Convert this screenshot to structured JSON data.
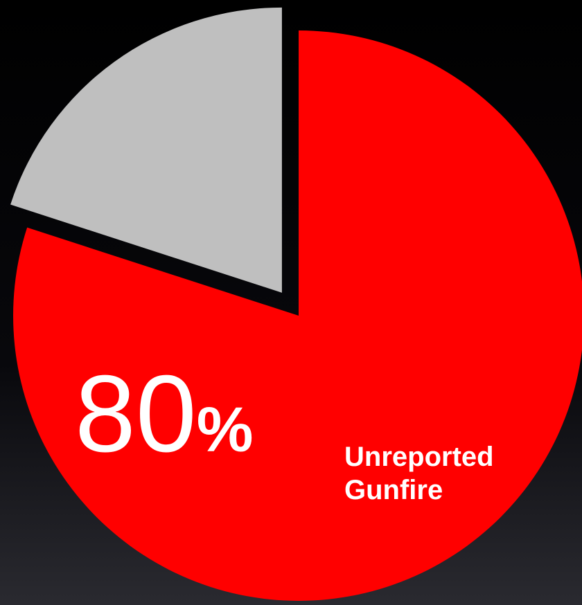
{
  "chart_data": {
    "type": "pie",
    "categories": [
      "Unreported Gunfire",
      null
    ],
    "values": [
      80,
      20
    ],
    "value_labels": [
      "80%",
      null
    ],
    "colors": [
      "#ff0000",
      "#bfbfbf"
    ]
  }
}
